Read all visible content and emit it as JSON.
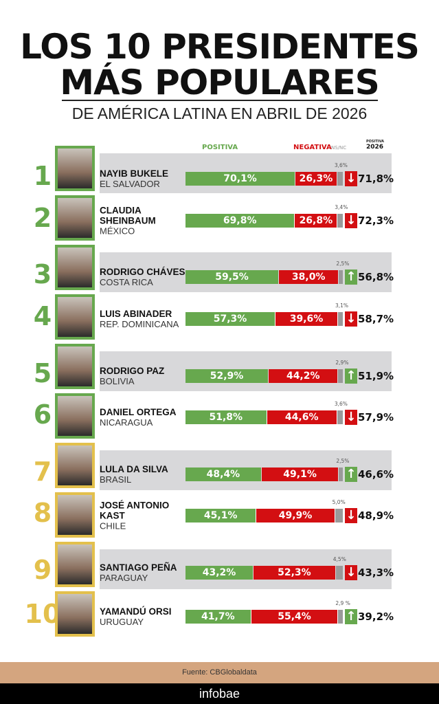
{
  "header": {
    "title_line1": "LOS 10 PRESIDENTES",
    "title_line2": "MÁS POPULARES",
    "subtitle": "DE AMÉRICA LATINA EN ABRIL DE 2026"
  },
  "legend": {
    "positive": "POSITIVA",
    "negative": "NEGATIVA",
    "nsnc": "NS/NC",
    "prev_small": "POSITIVA",
    "prev_year": "2026"
  },
  "colors": {
    "positive": "#67a84e",
    "negative": "#d30f12",
    "nsnc": "#9a9a9a",
    "rank_top": "#67a84e",
    "rank_bottom": "#e3c04c"
  },
  "chart_data": {
    "type": "bar",
    "stacked": true,
    "orientation": "horizontal",
    "xlim": [
      0,
      100
    ],
    "rows": [
      {
        "rank": "1",
        "name": "NAYIB BUKELE",
        "country": "EL SALVADOR",
        "positive": 70.1,
        "negative": 26.3,
        "nsnc": 3.6,
        "positive_label": "70,1%",
        "negative_label": "26,3%",
        "nsnc_label": "3,6%",
        "trend": "down",
        "prev_label": "71,8%"
      },
      {
        "rank": "2",
        "name": "CLAUDIA SHEINBAUM",
        "country": "MÉXICO",
        "positive": 69.8,
        "negative": 26.8,
        "nsnc": 3.4,
        "positive_label": "69,8%",
        "negative_label": "26,8%",
        "nsnc_label": "3,4%",
        "trend": "down",
        "prev_label": "72,3%"
      },
      {
        "rank": "3",
        "name": "RODRIGO CHÁVES",
        "country": "COSTA RICA",
        "positive": 59.5,
        "negative": 38.0,
        "nsnc": 2.5,
        "positive_label": "59,5%",
        "negative_label": "38,0%",
        "nsnc_label": "2,5%",
        "trend": "up",
        "prev_label": "56,8%"
      },
      {
        "rank": "4",
        "name": "LUIS ABINADER",
        "country": "REP. DOMINICANA",
        "positive": 57.3,
        "negative": 39.6,
        "nsnc": 3.1,
        "positive_label": "57,3%",
        "negative_label": "39,6%",
        "nsnc_label": "3,1%",
        "trend": "down",
        "prev_label": "58,7%"
      },
      {
        "rank": "5",
        "name": "RODRIGO PAZ",
        "country": "BOLIVIA",
        "positive": 52.9,
        "negative": 44.2,
        "nsnc": 2.9,
        "positive_label": "52,9%",
        "negative_label": "44,2%",
        "nsnc_label": "2,9%",
        "trend": "up",
        "prev_label": "51,9%"
      },
      {
        "rank": "6",
        "name": "DANIEL ORTEGA",
        "country": "NICARAGUA",
        "positive": 51.8,
        "negative": 44.6,
        "nsnc": 3.6,
        "positive_label": "51,8%",
        "negative_label": "44,6%",
        "nsnc_label": "3,6%",
        "trend": "down",
        "prev_label": "57,9%"
      },
      {
        "rank": "7",
        "name": "LULA DA SILVA",
        "country": "BRASIL",
        "positive": 48.4,
        "negative": 49.1,
        "nsnc": 2.5,
        "positive_label": "48,4%",
        "negative_label": "49,1%",
        "nsnc_label": "2,5%",
        "trend": "up",
        "prev_label": "46,6%"
      },
      {
        "rank": "8",
        "name": "JOSÉ ANTONIO KAST",
        "country": "CHILE",
        "positive": 45.1,
        "negative": 49.9,
        "nsnc": 5.0,
        "positive_label": "45,1%",
        "negative_label": "49,9%",
        "nsnc_label": "5,0%",
        "trend": "down",
        "prev_label": "48,9%"
      },
      {
        "rank": "9",
        "name": "SANTIAGO PEÑA",
        "country": "PARAGUAY",
        "positive": 43.2,
        "negative": 52.3,
        "nsnc": 4.5,
        "positive_label": "43,2%",
        "negative_label": "52,3%",
        "nsnc_label": "4,5%",
        "trend": "down",
        "prev_label": "43,3%"
      },
      {
        "rank": "10",
        "name": "YAMANDÚ ORSI",
        "country": "URUGUAY",
        "positive": 41.7,
        "negative": 55.4,
        "nsnc": 2.9,
        "positive_label": "41,7%",
        "negative_label": "55,4%",
        "nsnc_label": "2,9 %",
        "trend": "up",
        "prev_label": "39,2%"
      }
    ]
  },
  "footer": {
    "source": "Fuente: CBGlobaldata",
    "brand": "infobae"
  }
}
